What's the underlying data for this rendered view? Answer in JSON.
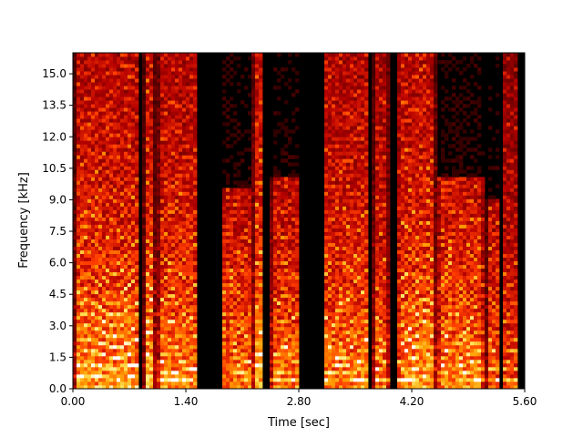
{
  "chart_data": {
    "type": "heatmap",
    "title": "",
    "xlabel": "Time [sec]",
    "ylabel": "Frequency [kHz]",
    "xlim": [
      0,
      5.6
    ],
    "ylim": [
      0,
      16
    ],
    "x_ticks": [
      0.0,
      1.4,
      2.8,
      4.2,
      5.6
    ],
    "x_tick_labels": [
      "0.00",
      "1.40",
      "2.80",
      "4.20",
      "5.60"
    ],
    "y_ticks": [
      0.0,
      1.5,
      3.0,
      4.5,
      6.0,
      7.5,
      9.0,
      10.5,
      12.0,
      13.5,
      15.0
    ],
    "y_tick_labels": [
      "0.0",
      "1.5",
      "3.0",
      "4.5",
      "6.0",
      "7.5",
      "9.0",
      "10.5",
      "12.0",
      "13.5",
      "15.0"
    ],
    "colormap": [
      "#000000",
      "#5a0000",
      "#b40000",
      "#ff3c00",
      "#ff9a00",
      "#ffe65a",
      "#ffffff"
    ],
    "grid": false,
    "segments": [
      {
        "start": 0.02,
        "end": 0.82,
        "intensity": 0.85,
        "f0": 0.55,
        "max_khz": 16
      },
      {
        "start": 0.88,
        "end": 1.02,
        "intensity": 0.9,
        "f0": 0.5,
        "max_khz": 16
      },
      {
        "start": 1.05,
        "end": 1.55,
        "intensity": 0.8,
        "f0": 0.45,
        "max_khz": 16
      },
      {
        "start": 1.84,
        "end": 2.23,
        "intensity": 0.75,
        "f0": 0.4,
        "max_khz": 9.5
      },
      {
        "start": 2.23,
        "end": 2.37,
        "intensity": 0.9,
        "f0": 0.5,
        "max_khz": 16
      },
      {
        "start": 2.45,
        "end": 2.82,
        "intensity": 0.75,
        "f0": 0.45,
        "max_khz": 10
      },
      {
        "start": 3.1,
        "end": 3.68,
        "intensity": 0.8,
        "f0": 0.42,
        "max_khz": 16
      },
      {
        "start": 3.72,
        "end": 3.92,
        "intensity": 0.75,
        "f0": 0.45,
        "max_khz": 16
      },
      {
        "start": 4.02,
        "end": 4.5,
        "intensity": 0.85,
        "f0": 0.48,
        "max_khz": 16
      },
      {
        "start": 4.52,
        "end": 5.1,
        "intensity": 0.8,
        "f0": 0.4,
        "max_khz": 10
      },
      {
        "start": 5.12,
        "end": 5.3,
        "intensity": 0.7,
        "f0": 0.45,
        "max_khz": 9
      },
      {
        "start": 5.32,
        "end": 5.52,
        "intensity": 0.65,
        "f0": 0.5,
        "max_khz": 16
      }
    ]
  }
}
